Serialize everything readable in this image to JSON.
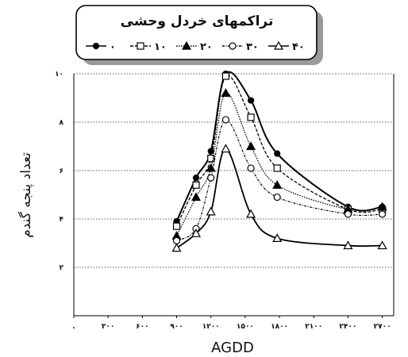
{
  "chart_data": {
    "type": "line",
    "title": "تراکمهای خردل وحشی",
    "xlabel": "AGDD",
    "ylabel": "تعداد پنجه گندم",
    "xlim": [
      0,
      2800
    ],
    "ylim": [
      0,
      10
    ],
    "xticks": [
      0,
      300,
      600,
      900,
      1200,
      1500,
      1800,
      2100,
      2400,
      2700
    ],
    "xtick_labels": [
      ".",
      "۳۰۰",
      "۶۰۰",
      "۹۰۰",
      "۱۲۰۰",
      "۱۵۰۰",
      "۱۸۰۰",
      "۲۱۰۰",
      "۲۴۰۰",
      "۲۷۰۰"
    ],
    "yticks": [
      2,
      4,
      6,
      8,
      10
    ],
    "ytick_labels": [
      "۲",
      "۴",
      "۶",
      "۸",
      "۱۰"
    ],
    "grid": true,
    "legend_position": "top",
    "series": [
      {
        "name": "۰",
        "marker": "filled-circle",
        "x": [
          900,
          1070,
          1200,
          1330,
          1550,
          1780,
          2400,
          2700
        ],
        "y": [
          3.9,
          5.7,
          6.8,
          10.0,
          8.9,
          6.7,
          4.5,
          4.5
        ]
      },
      {
        "name": "۱۰",
        "marker": "square",
        "x": [
          900,
          1070,
          1200,
          1330,
          1550,
          1780,
          2400,
          2700
        ],
        "y": [
          3.7,
          5.4,
          6.5,
          9.9,
          8.2,
          6.1,
          4.4,
          4.4
        ]
      },
      {
        "name": "۲۰",
        "marker": "filled-triangle",
        "x": [
          900,
          1070,
          1200,
          1330,
          1550,
          1780,
          2400,
          2700
        ],
        "y": [
          3.3,
          4.9,
          6.1,
          9.2,
          7.0,
          5.4,
          4.4,
          4.5
        ]
      },
      {
        "name": "۳۰",
        "marker": "circle",
        "x": [
          900,
          1070,
          1200,
          1330,
          1550,
          1780,
          2400,
          2700
        ],
        "y": [
          3.1,
          3.6,
          5.7,
          8.1,
          6.1,
          4.9,
          4.2,
          4.2
        ]
      },
      {
        "name": "۴۰",
        "marker": "triangle",
        "x": [
          900,
          1070,
          1200,
          1330,
          1550,
          1780,
          2400,
          2700
        ],
        "y": [
          2.8,
          3.4,
          4.3,
          6.9,
          4.2,
          3.2,
          2.9,
          2.9
        ]
      }
    ]
  }
}
